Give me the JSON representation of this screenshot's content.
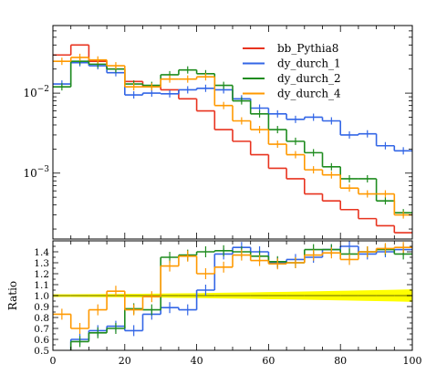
{
  "chart_data": {
    "type": "line",
    "style": "histogram-steps",
    "x_edges": [
      0,
      5,
      10,
      15,
      20,
      25,
      30,
      35,
      40,
      45,
      50,
      55,
      60,
      65,
      70,
      75,
      80,
      85,
      90,
      95,
      100
    ],
    "xlim": [
      0,
      100
    ],
    "x_ticks": [
      0,
      20,
      40,
      60,
      80,
      100
    ],
    "top_panel": {
      "yscale": "log",
      "ylim": [
        0.00015,
        0.07
      ],
      "y_ticks": [
        {
          "value": 0.01,
          "base": "10",
          "exp": "−2"
        },
        {
          "value": 0.001,
          "base": "10",
          "exp": "−3"
        }
      ]
    },
    "ratio_panel": {
      "ylabel": "Ratio",
      "ylim": [
        0.5,
        1.5
      ],
      "y_ticks": [
        "0.5",
        "0.6",
        "0.7",
        "0.8",
        "0.9",
        "1.0",
        "1.1",
        "1.2",
        "1.3",
        "1.4"
      ],
      "y_tick_values": [
        0.5,
        0.6,
        0.7,
        0.8,
        0.9,
        1.0,
        1.1,
        1.2,
        1.3,
        1.4
      ],
      "reference_line": 1.0,
      "band_color": "#ffff00"
    },
    "legend_position": "top-right",
    "series": [
      {
        "name": "bb_Pythia8",
        "color": "#e8331f",
        "values": [
          0.03,
          0.04,
          0.025,
          0.02,
          0.014,
          0.012,
          0.011,
          0.0085,
          0.006,
          0.0035,
          0.0025,
          0.0017,
          0.00115,
          0.00085,
          0.00055,
          0.00045,
          0.00035,
          0.00027,
          0.00022,
          0.00018
        ],
        "ratio": [
          1.0,
          1.0,
          1.0,
          1.0,
          1.0,
          1.0,
          1.0,
          1.0,
          1.0,
          1.0,
          1.0,
          1.0,
          1.0,
          1.0,
          1.0,
          1.0,
          1.0,
          1.0,
          1.0,
          1.0
        ]
      },
      {
        "name": "dy_durch_1",
        "color": "#3366e6",
        "values": [
          0.013,
          0.024,
          0.022,
          0.018,
          0.0095,
          0.01,
          0.0098,
          0.011,
          0.0115,
          0.011,
          0.0085,
          0.0065,
          0.0055,
          0.0047,
          0.005,
          0.0045,
          0.003,
          0.0031,
          0.0022,
          0.0019
        ],
        "ratio": [
          0.43,
          0.6,
          0.68,
          0.72,
          0.68,
          0.83,
          0.89,
          0.87,
          1.05,
          1.38,
          1.44,
          1.4,
          1.3,
          1.33,
          1.35,
          1.42,
          1.45,
          1.38,
          1.4,
          1.42
        ]
      },
      {
        "name": "dy_durch_2",
        "color": "#1f8c1f",
        "values": [
          0.012,
          0.025,
          0.023,
          0.02,
          0.013,
          0.0125,
          0.017,
          0.0195,
          0.0175,
          0.0125,
          0.008,
          0.0055,
          0.0035,
          0.0025,
          0.0018,
          0.0012,
          0.00085,
          0.00085,
          0.00045,
          0.00032
        ],
        "ratio": [
          0.4,
          0.58,
          0.66,
          0.7,
          0.88,
          0.87,
          1.35,
          1.37,
          1.4,
          1.41,
          1.4,
          1.36,
          1.31,
          1.3,
          1.42,
          1.42,
          1.38,
          1.4,
          1.42,
          1.38
        ]
      },
      {
        "name": "dy_durch_4",
        "color": "#ff9900",
        "values": [
          0.025,
          0.028,
          0.026,
          0.022,
          0.012,
          0.012,
          0.015,
          0.015,
          0.016,
          0.007,
          0.0045,
          0.0035,
          0.0023,
          0.0017,
          0.0011,
          0.00095,
          0.00065,
          0.00055,
          0.00055,
          0.0003
        ],
        "ratio": [
          0.83,
          0.7,
          0.87,
          1.04,
          0.87,
          0.99,
          1.27,
          1.36,
          1.2,
          1.26,
          1.37,
          1.32,
          1.29,
          1.3,
          1.37,
          1.39,
          1.33,
          1.4,
          1.43,
          1.44
        ]
      }
    ]
  }
}
